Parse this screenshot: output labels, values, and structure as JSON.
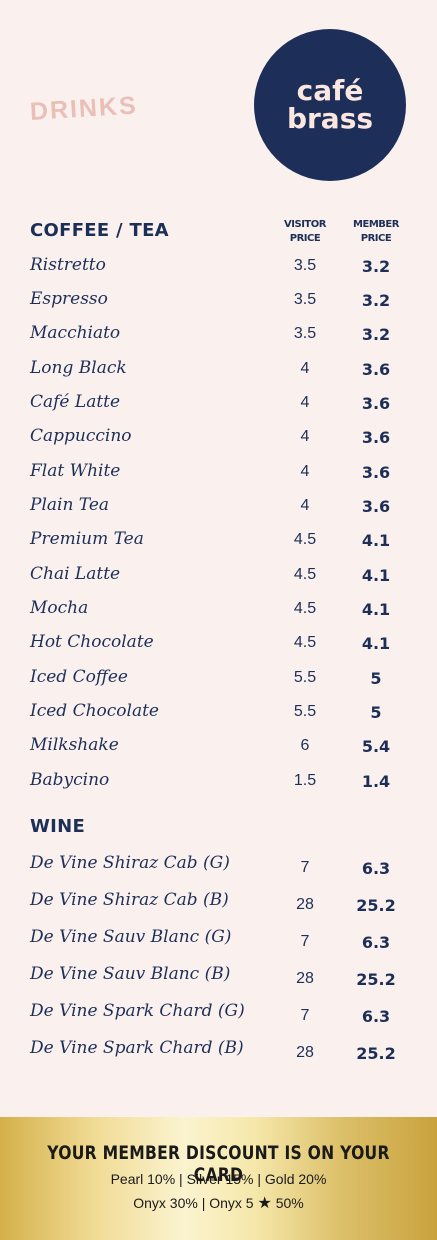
{
  "header": {
    "title": "DRINKS",
    "logo_line1": "café",
    "logo_line2": "brass"
  },
  "columns": {
    "visitor": [
      "VISITOR",
      "PRICE"
    ],
    "member": [
      "MEMBER",
      "PRICE"
    ]
  },
  "sections": [
    {
      "title": "COFFEE / TEA",
      "items": [
        {
          "name": "Ristretto",
          "visitor": "3.5",
          "member": "3.2"
        },
        {
          "name": "Espresso",
          "visitor": "3.5",
          "member": "3.2"
        },
        {
          "name": "Macchiato",
          "visitor": "3.5",
          "member": "3.2"
        },
        {
          "name": "Long Black",
          "visitor": "4",
          "member": "3.6"
        },
        {
          "name": "Café Latte",
          "visitor": "4",
          "member": "3.6"
        },
        {
          "name": "Cappuccino",
          "visitor": "4",
          "member": "3.6"
        },
        {
          "name": "Flat White",
          "visitor": "4",
          "member": "3.6"
        },
        {
          "name": "Plain Tea",
          "visitor": "4",
          "member": "3.6"
        },
        {
          "name": "Premium Tea",
          "visitor": "4.5",
          "member": "4.1"
        },
        {
          "name": "Chai Latte",
          "visitor": "4.5",
          "member": "4.1"
        },
        {
          "name": "Mocha",
          "visitor": "4.5",
          "member": "4.1"
        },
        {
          "name": "Hot Chocolate",
          "visitor": "4.5",
          "member": "4.1"
        },
        {
          "name": "Iced Coffee",
          "visitor": "5.5",
          "member": "5"
        },
        {
          "name": "Iced Chocolate",
          "visitor": "5.5",
          "member": "5"
        },
        {
          "name": "Milkshake",
          "visitor": "6",
          "member": "5.4"
        },
        {
          "name": "Babycino",
          "visitor": "1.5",
          "member": "1.4"
        }
      ]
    },
    {
      "title": "WINE",
      "items": [
        {
          "name": "De Vine Shiraz Cab (G)",
          "visitor": "7",
          "member": "6.3"
        },
        {
          "name": "De Vine Shiraz Cab (B)",
          "visitor": "28",
          "member": "25.2"
        },
        {
          "name": "De Vine Sauv Blanc  (G)",
          "visitor": "7",
          "member": "6.3"
        },
        {
          "name": "De Vine Sauv Blanc (B)",
          "visitor": "28",
          "member": "25.2"
        },
        {
          "name": "De Vine Spark Chard (G)",
          "visitor": "7",
          "member": "6.3"
        },
        {
          "name": "De Vine Spark Chard (B)",
          "visitor": "28",
          "member": "25.2"
        }
      ]
    }
  ],
  "footer": {
    "headline": "YOUR MEMBER DISCOUNT IS ON YOUR CARD",
    "line1": "Pearl 10% | Silver 15% | Gold 20%",
    "line2_before": "Onyx 30% | Onyx 5",
    "line2_after": "50%"
  },
  "colors": {
    "navy": "#1e2f57",
    "background": "#faf1ef",
    "drinks_pink": "#e9bfb7",
    "gold": "#e8cf7c"
  },
  "icons": {
    "footer_star": "star-icon"
  }
}
